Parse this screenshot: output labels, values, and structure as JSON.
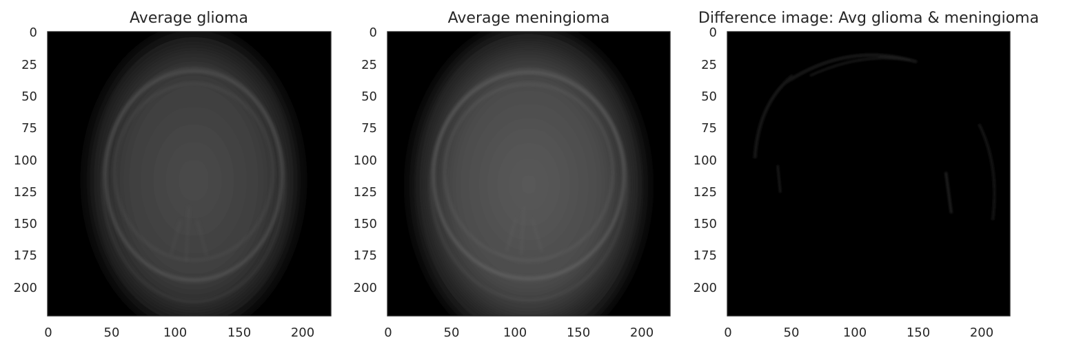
{
  "chart_data": [
    {
      "type": "image",
      "title": "Average glioma",
      "xlim": [
        0,
        223
      ],
      "ylim": [
        223,
        0
      ],
      "xticks": [
        0,
        50,
        100,
        150,
        200
      ],
      "yticks": [
        0,
        25,
        50,
        75,
        100,
        125,
        150,
        175,
        200
      ],
      "grid": false,
      "colormap": "gray",
      "content": "dark background with faint gray head-shaped averaged MRI"
    },
    {
      "type": "image",
      "title": "Average meningioma",
      "xlim": [
        0,
        223
      ],
      "ylim": [
        223,
        0
      ],
      "xticks": [
        0,
        50,
        100,
        150,
        200
      ],
      "yticks": [
        0,
        25,
        50,
        75,
        100,
        125,
        150,
        175,
        200
      ],
      "grid": false,
      "colormap": "gray",
      "content": "dark background with gray head-shaped averaged MRI"
    },
    {
      "type": "image",
      "title": "Difference image: Avg glioma & meningioma",
      "xlim": [
        0,
        223
      ],
      "ylim": [
        223,
        0
      ],
      "xticks": [
        0,
        50,
        100,
        150,
        200
      ],
      "yticks": [
        0,
        25,
        50,
        75,
        100,
        125,
        150,
        175,
        200
      ],
      "grid": false,
      "colormap": "gray",
      "content": "nearly black with faint arcs near the upper and side edges"
    }
  ],
  "colors": {
    "background": "#000000",
    "text": "#262626",
    "frame": "#262626"
  }
}
